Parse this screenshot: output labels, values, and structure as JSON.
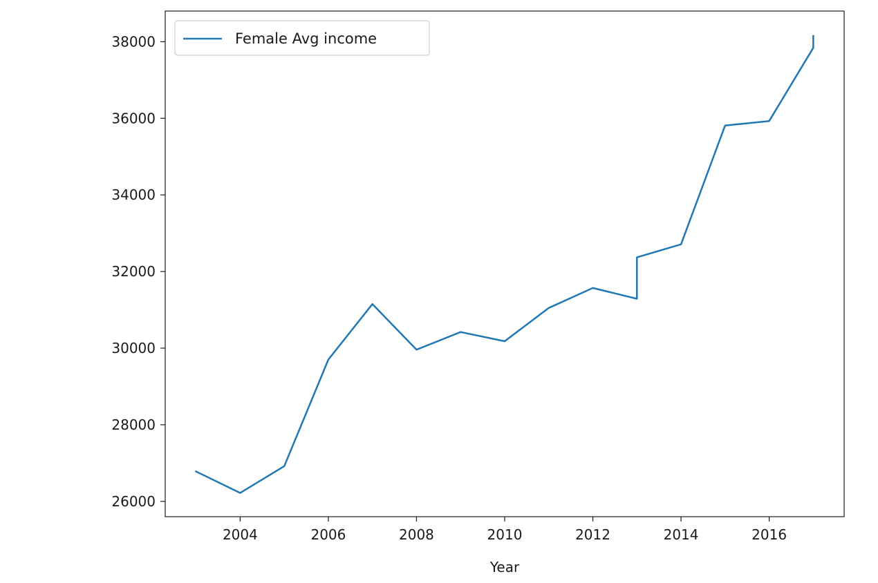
{
  "chart_data": {
    "type": "line",
    "xlabel": "Year",
    "ylabel": "",
    "xlim": [
      2002.3,
      2017.7
    ],
    "ylim": [
      25600,
      38800
    ],
    "xticks": [
      2004,
      2006,
      2008,
      2010,
      2012,
      2014,
      2016
    ],
    "yticks": [
      26000,
      28000,
      30000,
      32000,
      34000,
      36000,
      38000
    ],
    "grid": false,
    "legend_position": "upper left",
    "series": [
      {
        "name": "Female Avg income",
        "color": "#1f77b4",
        "x": [
          2003,
          2004,
          2005,
          2006,
          2007,
          2008,
          2009,
          2010,
          2011,
          2012,
          2013,
          2013,
          2014,
          2015,
          2016,
          2017,
          2017
        ],
        "y": [
          26780,
          26220,
          26920,
          29700,
          31150,
          29960,
          30420,
          30180,
          31050,
          31570,
          31290,
          32370,
          32710,
          35810,
          35930,
          37840,
          38150
        ]
      }
    ]
  }
}
